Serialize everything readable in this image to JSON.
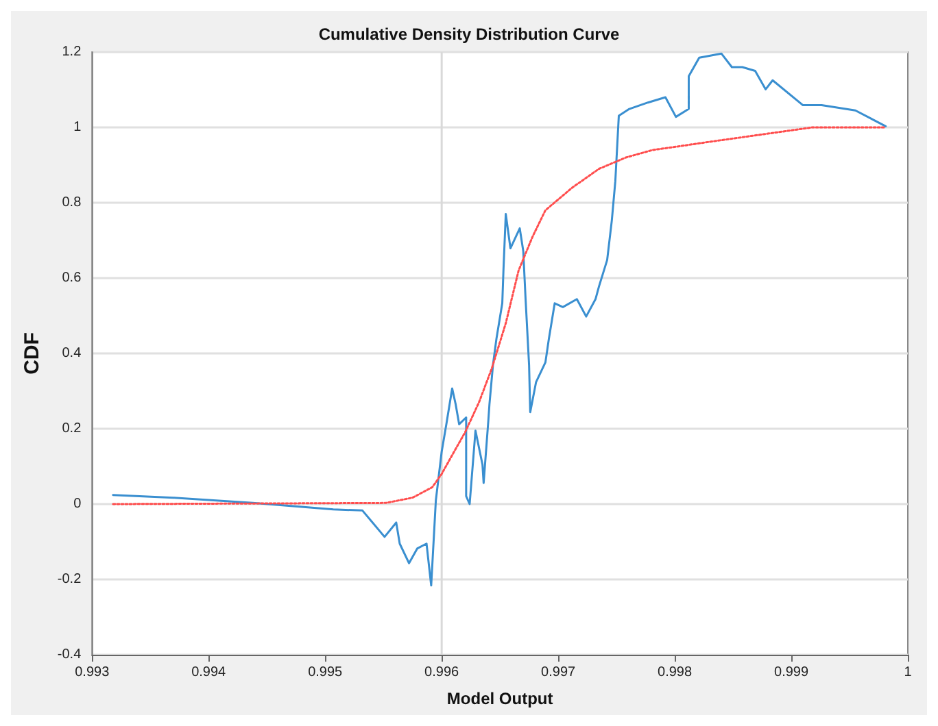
{
  "chart_data": {
    "type": "line",
    "title": "Cumulative Density Distribution Curve",
    "xlabel": "Model Output",
    "ylabel": "CDF",
    "xlim": [
      0.993,
      1
    ],
    "xticks": [
      0.993,
      0.994,
      0.995,
      0.996,
      0.997,
      0.998,
      0.999,
      1
    ],
    "ylim": [
      -0.4,
      1.2
    ],
    "yticks": [
      -0.4,
      -0.2,
      0,
      0.2,
      0.4,
      0.6,
      0.8,
      1,
      1.2
    ],
    "grid": "y",
    "marker": "none",
    "ref_lines": [
      {
        "axis": "x",
        "value": 0.996,
        "color": "#d9d9d9",
        "line_style": "solid"
      }
    ],
    "series": [
      {
        "color": "#3a8fd0",
        "line_style": "solid",
        "x": [
          0.99318,
          0.9937,
          0.99438,
          0.99507,
          0.99532,
          0.99551,
          0.99561,
          0.99564,
          0.99572,
          0.99579,
          0.99587,
          0.99591,
          0.99595,
          0.996,
          0.99604,
          0.99609,
          0.99612,
          0.99615,
          0.99621,
          0.99621,
          0.99624,
          0.99629,
          0.99635,
          0.99636,
          0.9964,
          0.99641,
          0.99644,
          0.99647,
          0.99652,
          0.99653,
          0.99655,
          0.99659,
          0.99667,
          0.9967,
          0.99672,
          0.99675,
          0.99676,
          0.99681,
          0.99689,
          0.99692,
          0.99697,
          0.99704,
          0.99716,
          0.99724,
          0.99732,
          0.99735,
          0.99742,
          0.99746,
          0.99749,
          0.99752,
          0.99761,
          0.99777,
          0.99792,
          0.99801,
          0.99812,
          0.99812,
          0.99821,
          0.9984,
          0.99849,
          0.99858,
          0.99869,
          0.99878,
          0.99884,
          0.9991,
          0.99926,
          0.99955,
          0.99981
        ],
        "values": [
          0.024,
          0.017,
          0.003,
          -0.014,
          -0.017,
          -0.087,
          -0.049,
          -0.105,
          -0.157,
          -0.118,
          -0.105,
          -0.216,
          0.01,
          0.139,
          0.212,
          0.307,
          0.265,
          0.212,
          0.23,
          0.021,
          0,
          0.195,
          0.105,
          0.056,
          0.22,
          0.265,
          0.369,
          0.439,
          0.533,
          0.62,
          0.77,
          0.679,
          0.732,
          0.672,
          0.544,
          0.369,
          0.244,
          0.324,
          0.376,
          0.439,
          0.533,
          0.523,
          0.544,
          0.498,
          0.544,
          0.578,
          0.648,
          0.753,
          0.857,
          1.031,
          1.049,
          1.066,
          1.08,
          1.028,
          1.049,
          1.136,
          1.185,
          1.196,
          1.16,
          1.16,
          1.15,
          1.101,
          1.125,
          1.059,
          1.059,
          1.045,
          1.003
        ]
      },
      {
        "color": "#ff4d4d",
        "line_style": "dotted",
        "x": [
          0.99318,
          0.99552,
          0.99575,
          0.99592,
          0.996,
          0.99609,
          0.9962,
          0.99632,
          0.99643,
          0.99655,
          0.99666,
          0.99678,
          0.99689,
          0.99712,
          0.99735,
          0.99758,
          0.99781,
          0.99804,
          0.99826,
          0.99849,
          0.99872,
          0.99895,
          0.99918,
          0.99981
        ],
        "values": [
          0,
          0.003,
          0.017,
          0.045,
          0.08,
          0.13,
          0.19,
          0.27,
          0.36,
          0.48,
          0.62,
          0.71,
          0.78,
          0.84,
          0.89,
          0.92,
          0.94,
          0.95,
          0.96,
          0.97,
          0.98,
          0.99,
          1.0,
          1.0
        ]
      }
    ]
  }
}
